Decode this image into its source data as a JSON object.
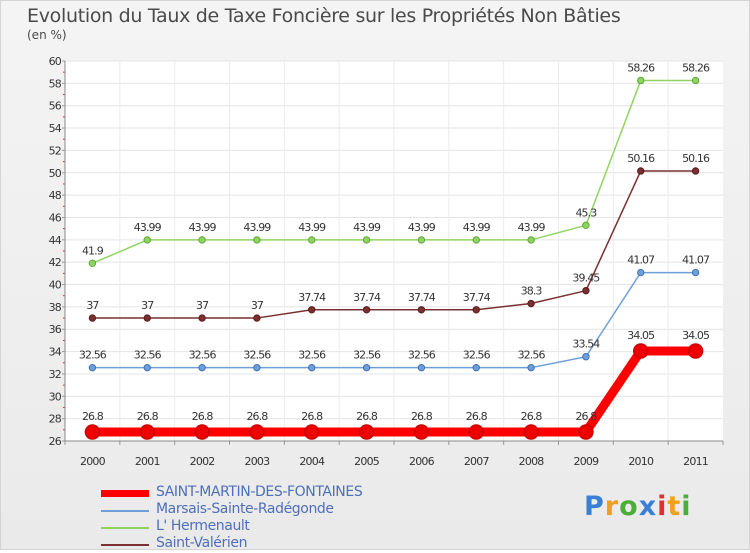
{
  "chart_data": {
    "type": "line",
    "title": "Evolution du Taux de Taxe Foncière sur les Propriétés Non Bâties",
    "unit_label": "(en %)",
    "xlabel": "",
    "ylabel": "",
    "x": [
      "2000",
      "2001",
      "2002",
      "2003",
      "2004",
      "2005",
      "2006",
      "2007",
      "2008",
      "2009",
      "2010",
      "2011"
    ],
    "ylim": [
      26,
      60
    ],
    "y_ticks": [
      26,
      28,
      30,
      32,
      34,
      36,
      38,
      40,
      42,
      44,
      46,
      48,
      50,
      52,
      54,
      56,
      58,
      60
    ],
    "grid": true,
    "legend_position": "bottom-left",
    "series": [
      {
        "name": "SAINT-MARTIN-DES-FONTAINES",
        "color": "#ff0000",
        "values": [
          26.8,
          26.8,
          26.8,
          26.8,
          26.8,
          26.8,
          26.8,
          26.8,
          26.8,
          26.8,
          34.05,
          34.05
        ],
        "labels": [
          "26.8",
          "26.8",
          "26.8",
          "26.8",
          "26.8",
          "26.8",
          "26.8",
          "26.8",
          "26.8",
          "26.8",
          "34.05",
          "34.05"
        ]
      },
      {
        "name": "Marsais-Sainte-Radégonde",
        "color": "#6f9fd8",
        "values": [
          32.56,
          32.56,
          32.56,
          32.56,
          32.56,
          32.56,
          32.56,
          32.56,
          32.56,
          33.54,
          41.07,
          41.07
        ],
        "labels": [
          "32.56",
          "32.56",
          "32.56",
          "32.56",
          "32.56",
          "32.56",
          "32.56",
          "32.56",
          "32.56",
          "33.54",
          "41.07",
          "41.07"
        ]
      },
      {
        "name": "L' Hermenault",
        "color": "#8fd462",
        "values": [
          41.9,
          43.99,
          43.99,
          43.99,
          43.99,
          43.99,
          43.99,
          43.99,
          43.99,
          45.3,
          58.26,
          58.26
        ],
        "labels": [
          "41.9",
          "43.99",
          "43.99",
          "43.99",
          "43.99",
          "43.99",
          "43.99",
          "43.99",
          "43.99",
          "45.3",
          "58.26",
          "58.26"
        ]
      },
      {
        "name": "Saint-Valérien",
        "color": "#7a3030",
        "values": [
          37,
          37,
          37,
          37,
          37.74,
          37.74,
          37.74,
          37.74,
          38.3,
          39.45,
          50.16,
          50.16
        ],
        "labels": [
          "37",
          "37",
          "37",
          "37",
          "37.74",
          "37.74",
          "37.74",
          "37.74",
          "38.3",
          "39.45",
          "50.16",
          "50.16"
        ]
      }
    ]
  },
  "logo": {
    "letters": [
      "P",
      "r",
      "o",
      "x",
      "i",
      "t",
      "i"
    ],
    "colors": [
      "#3b7fd4",
      "#f0a020",
      "#4cae3a",
      "#3b7fd4",
      "#e03030",
      "#f0a020",
      "#4cae3a"
    ]
  }
}
